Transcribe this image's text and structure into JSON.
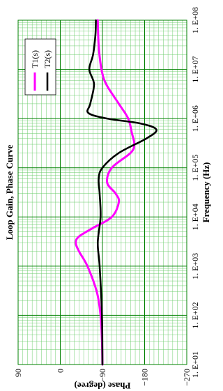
{
  "chart_data": {
    "type": "line",
    "title": "Loop Gain, Phase Curve",
    "xlabel": "Frequency (Hz)",
    "ylabel": "Phase (degree)",
    "x_scale": "log",
    "xlim": [
      10,
      100000000
    ],
    "ylim": [
      -270,
      90
    ],
    "x_ticks": [
      10,
      100,
      1000,
      10000,
      100000,
      1000000,
      10000000,
      100000000
    ],
    "x_tick_labels": [
      "1. E+01",
      "1. E+02",
      "1. E+03",
      "1. E+04",
      "1. E+05",
      "1. E+06",
      "1. E+07",
      "1. E+08"
    ],
    "y_ticks": [
      90,
      0,
      -90,
      -180,
      -270
    ],
    "y_tick_labels": [
      "90",
      "0",
      "−90",
      "−180",
      "−270"
    ],
    "grid": true,
    "legend_placement": "top-right",
    "orientation": "rotated 90° counter-clockwise",
    "series": [
      {
        "name": "T1(s)",
        "color": "#ff00ff",
        "x": [
          10,
          30,
          100,
          300,
          1000,
          2000,
          3000,
          4000,
          6000,
          10000,
          20000,
          30000,
          50000,
          100000,
          200000,
          300000,
          500000,
          1000000,
          2000000,
          5000000,
          10000000,
          30000000,
          100000000
        ],
        "y": [
          -90,
          -89,
          -86,
          -78,
          -58,
          -40,
          -33,
          -40,
          -70,
          -110,
          -125,
          -118,
          -100,
          -110,
          -150,
          -158,
          -153,
          -145,
          -125,
          -98,
          -88,
          -82,
          -80
        ]
      },
      {
        "name": "T2(s)",
        "color": "#000000",
        "x": [
          10,
          100,
          1000,
          3000,
          10000,
          30000,
          60000,
          100000,
          200000,
          400000,
          600000,
          800000,
          1000000,
          1300000,
          2000000,
          5000000,
          10000000,
          20000000,
          50000000,
          100000000
        ],
        "y": [
          -90,
          -89,
          -84,
          -80,
          -86,
          -84,
          -82,
          -90,
          -125,
          -185,
          -205,
          -170,
          -100,
          -60,
          -64,
          -72,
          -62,
          -70,
          -75,
          -76
        ]
      }
    ]
  }
}
